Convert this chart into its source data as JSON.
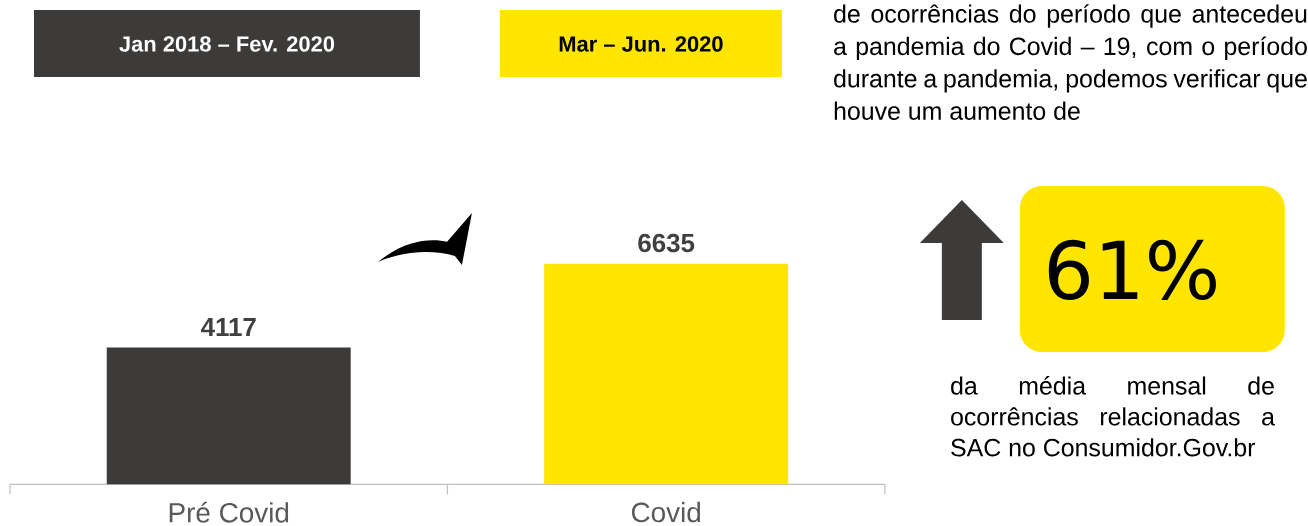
{
  "chart_data": {
    "type": "bar",
    "categories": [
      "Pré Covid",
      "Covid"
    ],
    "values": [
      4117,
      6635
    ],
    "colors": [
      "#3c3b39",
      "#ffe500"
    ],
    "data_labels": true,
    "annotations": [
      "Jan 2018 – Fev. 2020",
      "Mar – Jun. 2020",
      "de ocorrências do período que antecedeu a pandemia do Covid – 19, com o período durante a pandemia, podemos verificar que houve um aumento de",
      "61%",
      "da média mensal de ocorrências relacionadas a SAC no Consumidor.Gov.br"
    ]
  }
}
